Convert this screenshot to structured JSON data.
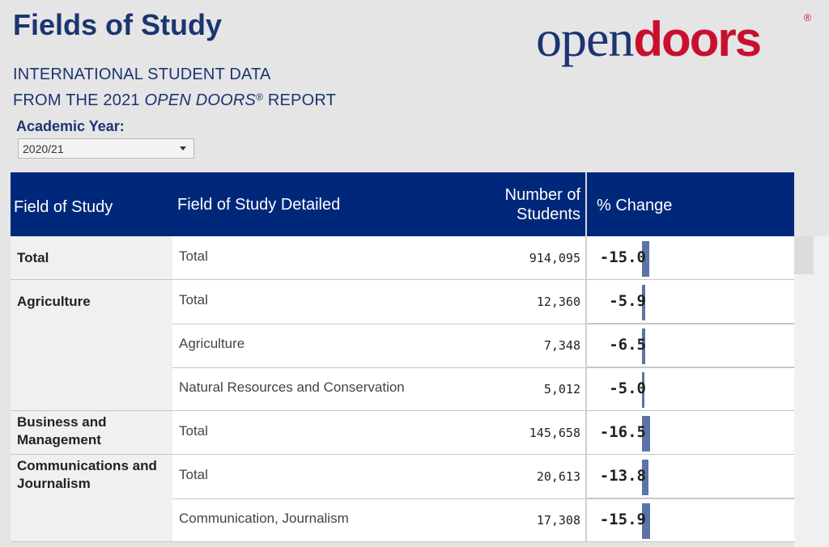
{
  "header": {
    "title": "Fields of Study",
    "subtitle_line1": "INTERNATIONAL STUDENT DATA",
    "subtitle_line2_pre": "FROM THE 2021 ",
    "subtitle_line2_italic": "OPEN DOORS",
    "subtitle_reg": "®",
    "subtitle_line2_post": " REPORT"
  },
  "logo": {
    "part1": "open",
    "part2": "doors",
    "reg": "®"
  },
  "filter": {
    "label": "Academic Year:",
    "selected": "2020/21"
  },
  "table": {
    "headers": {
      "field": "Field of Study",
      "detail": "Field of Study Detailed",
      "num_line1": "Number of",
      "num_line2": "Students",
      "pct": "% Change"
    },
    "groups": [
      {
        "label": "Total",
        "rows": [
          {
            "detail": "Total",
            "students": "914,095",
            "change": -15.0,
            "change_label": "-15.0"
          }
        ]
      },
      {
        "label": "Agriculture",
        "rows": [
          {
            "detail": "Total",
            "students": "12,360",
            "change": -5.9,
            "change_label": "-5.9"
          },
          {
            "detail": "Agriculture",
            "students": "7,348",
            "change": -6.5,
            "change_label": "-6.5"
          },
          {
            "detail": "Natural Resources and Conservation",
            "students": "5,012",
            "change": -5.0,
            "change_label": "-5.0"
          }
        ]
      },
      {
        "label": "Business and Management",
        "rows": [
          {
            "detail": "Total",
            "students": "145,658",
            "change": -16.5,
            "change_label": "-16.5"
          }
        ]
      },
      {
        "label": "Communications and Journalism",
        "rows": [
          {
            "detail": "Total",
            "students": "20,613",
            "change": -13.8,
            "change_label": "-13.8"
          },
          {
            "detail": "Communication, Journalism",
            "students": "17,308",
            "change": -15.9,
            "change_label": "-15.9"
          }
        ]
      }
    ]
  },
  "colors": {
    "header_bg": "#00287a",
    "title": "#1b3570",
    "logo_red": "#c8102e",
    "bar": "#5a74a8"
  }
}
